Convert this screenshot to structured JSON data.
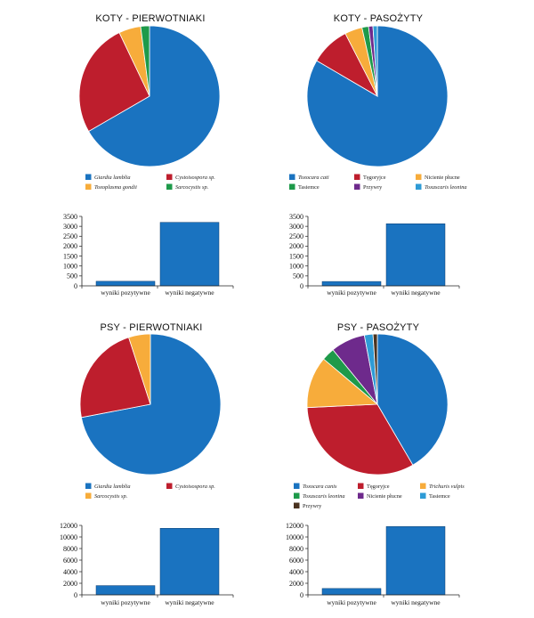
{
  "colors": {
    "blue": "#1a73c0",
    "red": "#be1e2d",
    "orange": "#f7ac3b",
    "green": "#1e9a4a",
    "purple": "#6e2a8c",
    "cyan": "#2e9bd6",
    "brown": "#4a3320"
  },
  "chart_data": [
    {
      "type": "pie",
      "title": "KOTY - PIERWOTNIAKI",
      "labels": [
        "Giardia lamblia",
        "Cystoisospora sp.",
        "Toxoplasma gondii",
        "Sarcocystis sp."
      ],
      "values": [
        66,
        26,
        5,
        2
      ],
      "colors": [
        "#1a73c0",
        "#be1e2d",
        "#f7ac3b",
        "#1e9a4a"
      ]
    },
    {
      "type": "pie",
      "title": "KOTY - PASOŻYTY",
      "labels": [
        "Toxocara cati",
        "Tęgoryjce",
        "Nicienie płucne",
        "Tasiemce",
        "Przywry",
        "Toxascaris leonina"
      ],
      "values": [
        83,
        9,
        4,
        1.5,
        1,
        1
      ],
      "colors": [
        "#1a73c0",
        "#be1e2d",
        "#f7ac3b",
        "#1e9a4a",
        "#6e2a8c",
        "#2e9bd6"
      ]
    },
    {
      "type": "bar",
      "categories": [
        "wyniki pozytywne",
        "wyniki negatywne"
      ],
      "values": [
        230,
        3200
      ],
      "ylim": [
        0,
        3500
      ],
      "yticks": [
        0,
        500,
        1000,
        1500,
        2000,
        2500,
        3000,
        3500
      ],
      "color": "#1a73c0"
    },
    {
      "type": "bar",
      "categories": [
        "wyniki pozytywne",
        "wyniki negatywne"
      ],
      "values": [
        220,
        3130
      ],
      "ylim": [
        0,
        3500
      ],
      "yticks": [
        0,
        500,
        1000,
        1500,
        2000,
        2500,
        3000,
        3500
      ],
      "color": "#1a73c0"
    },
    {
      "type": "pie",
      "title": "PSY - PIERWOTNIAKI",
      "labels": [
        "Giardia lamblia",
        "Cystoisospora sp.",
        "Sarcocystis sp."
      ],
      "values": [
        72,
        23,
        5
      ],
      "colors": [
        "#1a73c0",
        "#be1e2d",
        "#f7ac3b"
      ]
    },
    {
      "type": "pie",
      "title": "PSY - PASOŻYTY",
      "labels": [
        "Toxocara canis",
        "Tęgoryjce",
        "Trichuris vulpis",
        "Toxascaris leonina",
        "Nicienie płucne",
        "Tasiemce",
        "Przywry"
      ],
      "values": [
        42,
        33,
        12,
        3,
        8,
        2,
        1
      ],
      "colors": [
        "#1a73c0",
        "#be1e2d",
        "#f7ac3b",
        "#1e9a4a",
        "#6e2a8c",
        "#2e9bd6",
        "#4a3320"
      ]
    },
    {
      "type": "bar",
      "categories": [
        "wyniki pozytywne",
        "wyniki negatywne"
      ],
      "values": [
        1600,
        11500
      ],
      "ylim": [
        0,
        12000
      ],
      "yticks": [
        0,
        2000,
        4000,
        6000,
        8000,
        10000,
        12000
      ],
      "color": "#1a73c0"
    },
    {
      "type": "bar",
      "categories": [
        "wyniki pozytywne",
        "wyniki negatywne"
      ],
      "values": [
        1100,
        11800
      ],
      "ylim": [
        0,
        12000
      ],
      "yticks": [
        0,
        2000,
        4000,
        6000,
        8000,
        10000,
        12000
      ],
      "color": "#1a73c0"
    }
  ]
}
